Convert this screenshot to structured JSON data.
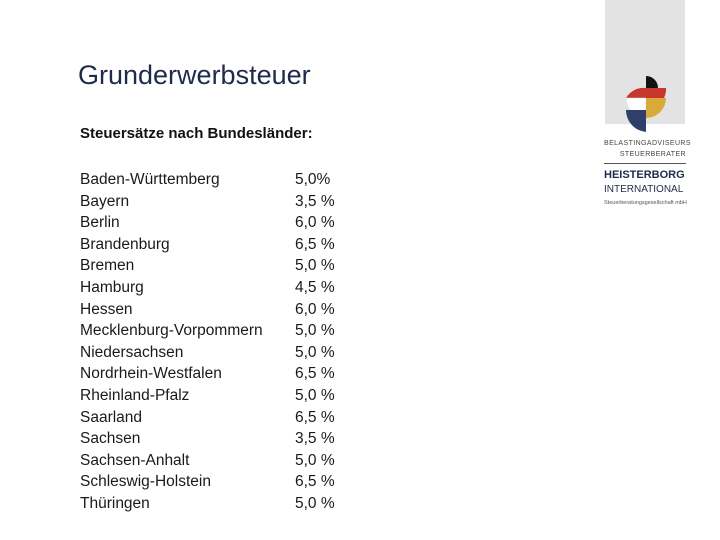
{
  "title": "Grunderwerbsteuer",
  "subtitle": "Steuersätze nach Bundesländer:",
  "rates": [
    {
      "state": "Baden-Württemberg",
      "rate": "5,0%"
    },
    {
      "state": "Bayern",
      "rate": "3,5 %"
    },
    {
      "state": "Berlin",
      "rate": "6,0 %"
    },
    {
      "state": "Brandenburg",
      "rate": "6,5 %"
    },
    {
      "state": "Bremen",
      "rate": "5,0 %"
    },
    {
      "state": "Hamburg",
      "rate": "4,5 %"
    },
    {
      "state": "Hessen",
      "rate": "6,0 %"
    },
    {
      "state": "Mecklenburg-Vorpommern",
      "rate": "5,0 %"
    },
    {
      "state": "Niedersachsen",
      "rate": "5,0 %"
    },
    {
      "state": "Nordrhein-Westfalen",
      "rate": "6,5 %"
    },
    {
      "state": "Rheinland-Pfalz",
      "rate": "5,0 %"
    },
    {
      "state": "Saarland",
      "rate": "6,5 %"
    },
    {
      "state": "Sachsen",
      "rate": "3,5 %"
    },
    {
      "state": "Sachsen-Anhalt",
      "rate": "5,0 %"
    },
    {
      "state": "Schleswig-Holstein",
      "rate": "6,5 %"
    },
    {
      "state": "Thüringen",
      "rate": "5,0 %"
    }
  ],
  "logo": {
    "line1": "BELASTINGADVISEURS",
    "line2": "STEUERBERATER",
    "name": "HEISTERBORG",
    "name2": "INTERNATIONAL",
    "tagline": "Steuerberatungsgesellschaft mbH",
    "icon": "logo-mark-icon",
    "colors": {
      "black": "#111111",
      "red": "#c8372d",
      "gold": "#d9a93a",
      "blue": "#2e3f6b",
      "band": "#e3e3e3"
    }
  }
}
